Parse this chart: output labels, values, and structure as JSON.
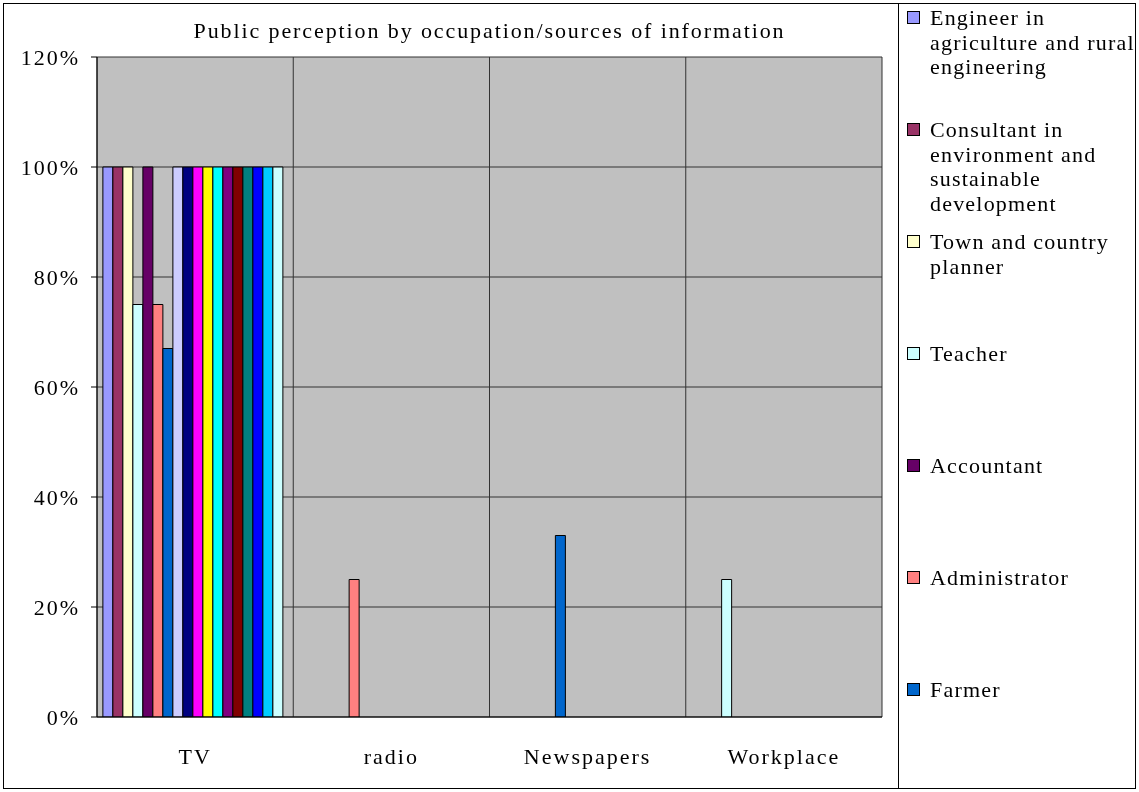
{
  "chart_data": {
    "type": "bar",
    "title": "Public perception by occupation/sources of information",
    "categories": [
      "TV",
      "radio",
      "Newspapers",
      "Workplace"
    ],
    "series": [
      {
        "name": "Engineer in agriculture and rural engineering",
        "color": "#9999ff",
        "values": [
          100,
          null,
          null,
          null
        ]
      },
      {
        "name": "Consultant in environment and sustainable development",
        "color": "#993366",
        "values": [
          100,
          null,
          null,
          null
        ]
      },
      {
        "name": "Town and country planner",
        "color": "#ffffcc",
        "values": [
          100,
          null,
          null,
          null
        ]
      },
      {
        "name": "Teacher",
        "color": "#ccffff",
        "values": [
          75,
          null,
          null,
          25
        ]
      },
      {
        "name": "Accountant",
        "color": "#660066",
        "values": [
          100,
          null,
          null,
          null
        ]
      },
      {
        "name": "Administrator",
        "color": "#ff8080",
        "values": [
          75,
          25,
          null,
          null
        ]
      },
      {
        "name": "Farmer",
        "color": "#0066cc",
        "values": [
          67,
          null,
          33,
          null
        ]
      },
      {
        "color": "#ccccff",
        "values": [
          100,
          null,
          null,
          null
        ]
      },
      {
        "color": "#000080",
        "values": [
          100,
          null,
          null,
          null
        ]
      },
      {
        "color": "#ff00ff",
        "values": [
          100,
          null,
          null,
          null
        ]
      },
      {
        "color": "#ffff00",
        "values": [
          100,
          null,
          null,
          null
        ]
      },
      {
        "color": "#00ffff",
        "values": [
          100,
          null,
          null,
          null
        ]
      },
      {
        "color": "#800080",
        "values": [
          100,
          null,
          null,
          null
        ]
      },
      {
        "color": "#800000",
        "values": [
          100,
          null,
          null,
          null
        ]
      },
      {
        "color": "#008080",
        "values": [
          100,
          null,
          null,
          null
        ]
      },
      {
        "color": "#0000ff",
        "values": [
          100,
          null,
          null,
          null
        ]
      },
      {
        "color": "#00ccff",
        "values": [
          100,
          null,
          null,
          null
        ]
      },
      {
        "color": "#ccffff",
        "values": [
          100,
          null,
          null,
          null
        ]
      }
    ],
    "ylim": [
      0,
      120
    ],
    "yticks": [
      {
        "value": 0,
        "label": "0%"
      },
      {
        "value": 20,
        "label": "20%"
      },
      {
        "value": 40,
        "label": "40%"
      },
      {
        "value": 60,
        "label": "60%"
      },
      {
        "value": 80,
        "label": "80%"
      },
      {
        "value": 100,
        "label": "100%"
      },
      {
        "value": 120,
        "label": "120%"
      }
    ],
    "grid": true,
    "legend": "right"
  }
}
